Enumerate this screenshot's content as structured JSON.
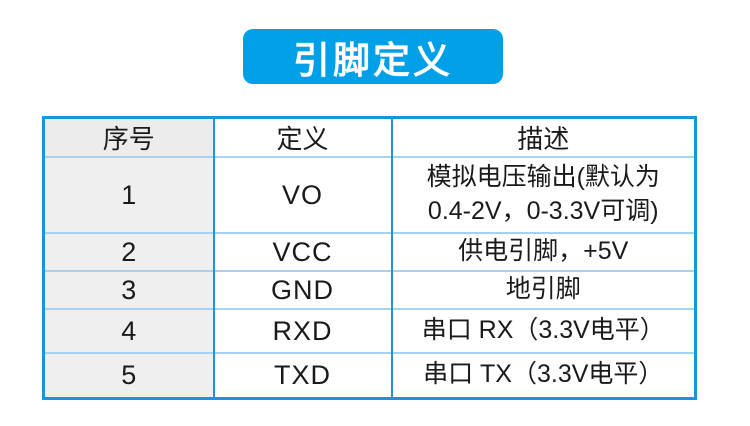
{
  "page": {
    "background_color": "#FFFFFF"
  },
  "badge": {
    "label": "引脚定义",
    "background_color": "#00A0E9",
    "text_color": "#FFFFFF"
  },
  "table": {
    "headers": [
      "序号",
      "定义",
      "描述"
    ],
    "rows": [
      {
        "no": "1",
        "definition": "VO",
        "description": "模拟电压输出(默认为\n0.4-2V，0-3.3V可调)"
      },
      {
        "no": "2",
        "definition": "VCC",
        "description": "供电引脚，+5V"
      },
      {
        "no": "3",
        "definition": "GND",
        "description": "地引脚"
      },
      {
        "no": "4",
        "definition": "RXD",
        "description": "串口 RX（3.3V电平）"
      },
      {
        "no": "5",
        "definition": "TXD",
        "description": "串口 TX（3.3V电平）"
      }
    ],
    "colors": {
      "outer_border": "#1697DB",
      "vertical_border": "#2491D8",
      "horizontal_border": "#A6D2F0",
      "first_column_bg": "#EFEFEF"
    }
  }
}
